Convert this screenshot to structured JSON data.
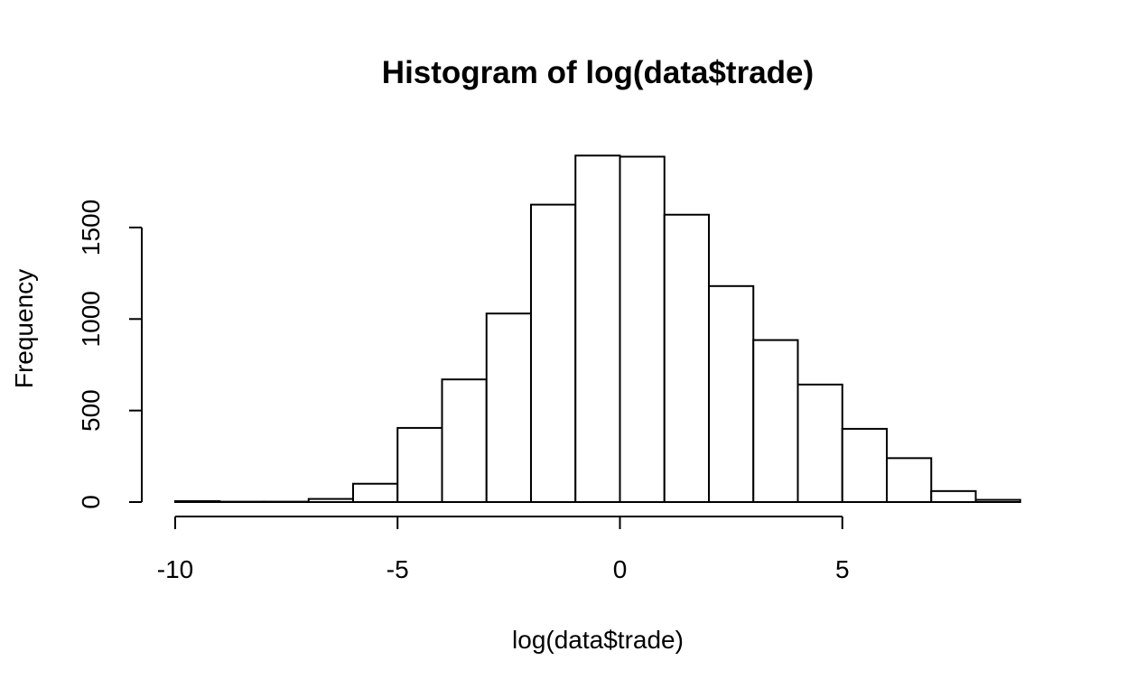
{
  "chart_data": {
    "type": "bar",
    "title": "Histogram of log(data$trade)",
    "xlabel": "log(data$trade)",
    "ylabel": "Frequency",
    "bin_edges": [
      -10,
      -9,
      -8,
      -7,
      -6,
      -5,
      -4,
      -3,
      -2,
      -1,
      0,
      1,
      2,
      3,
      4,
      5,
      6,
      7,
      8,
      9
    ],
    "values": [
      5,
      2,
      2,
      17,
      100,
      405,
      670,
      1030,
      1625,
      1893,
      1887,
      1570,
      1180,
      885,
      642,
      400,
      240,
      60,
      12
    ],
    "xlim": [
      -10,
      9
    ],
    "ylim": [
      0,
      1900
    ],
    "x_ticks": [
      -10,
      -5,
      0,
      5
    ],
    "x_tick_labels": [
      "-10",
      "-5",
      "0",
      "5"
    ],
    "y_ticks": [
      0,
      500,
      1000,
      1500
    ],
    "y_tick_labels": [
      "0",
      "500",
      "1000",
      "1500"
    ],
    "bar_fill": "#ffffff",
    "bar_stroke": "#000000",
    "grid": false,
    "legend": "none"
  }
}
